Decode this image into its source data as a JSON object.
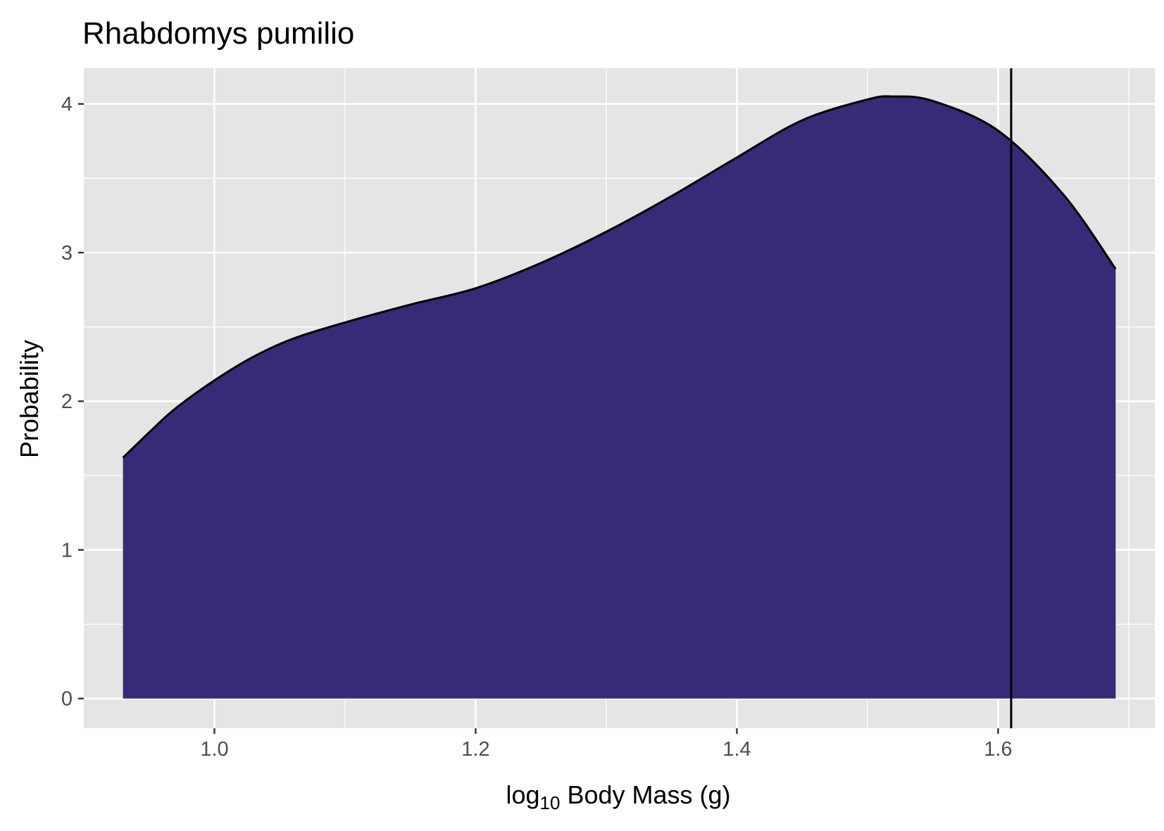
{
  "chart_data": {
    "type": "area",
    "title": "Rhabdomys pumilio",
    "xlabel": {
      "prefix": "log",
      "subscript": "10",
      "suffix": " Body Mass (g)"
    },
    "ylabel": "Probability",
    "xlim": [
      0.9,
      1.72
    ],
    "ylim": [
      -0.2,
      4.24
    ],
    "x_ticks": [
      {
        "value": 1.0,
        "label": "1.0"
      },
      {
        "value": 1.2,
        "label": "1.2"
      },
      {
        "value": 1.4,
        "label": "1.4"
      },
      {
        "value": 1.6,
        "label": "1.6"
      }
    ],
    "y_ticks": [
      {
        "value": 0,
        "label": "0"
      },
      {
        "value": 1,
        "label": "1"
      },
      {
        "value": 2,
        "label": "2"
      },
      {
        "value": 3,
        "label": "3"
      },
      {
        "value": 4,
        "label": "4"
      }
    ],
    "x_minor_gridlines": [
      1.1,
      1.3,
      1.5,
      1.7
    ],
    "y_minor_gridlines": [
      0.5,
      1.5,
      2.5,
      3.5
    ],
    "grid": true,
    "x": [
      0.93,
      0.95,
      0.97,
      1.0,
      1.03,
      1.06,
      1.1,
      1.15,
      1.2,
      1.25,
      1.3,
      1.35,
      1.4,
      1.45,
      1.5,
      1.52,
      1.55,
      1.6,
      1.65,
      1.69
    ],
    "y": [
      1.62,
      1.79,
      1.95,
      2.14,
      2.3,
      2.42,
      2.53,
      2.65,
      2.76,
      2.93,
      3.14,
      3.38,
      3.64,
      3.89,
      4.03,
      4.05,
      4.02,
      3.82,
      3.39,
      2.89
    ],
    "reference_line": {
      "x": 1.61
    },
    "colors": {
      "fill": "#372a77",
      "line": "#000000",
      "panel": "#e5e5e5",
      "grid": "#ffffff"
    }
  }
}
